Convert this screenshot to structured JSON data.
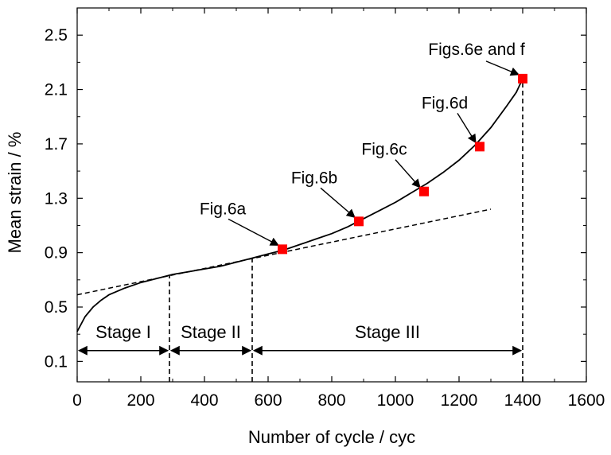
{
  "chart_data": {
    "type": "line",
    "title": "",
    "xlabel": "Number of cycle / cyc",
    "ylabel": "Mean strain / %",
    "xlim": [
      0,
      1600
    ],
    "ylim": [
      -0.05,
      2.7
    ],
    "xticks": [
      0,
      200,
      400,
      600,
      800,
      1000,
      1200,
      1400,
      1600
    ],
    "xtick_labels": [
      "0",
      "200",
      "400",
      "600",
      "800",
      "1000",
      "1200",
      "1400",
      "1600"
    ],
    "yticks": [
      0.1,
      0.5,
      0.9,
      1.3,
      1.7,
      2.1,
      2.5
    ],
    "ytick_labels": [
      "0.1",
      "0.5",
      "0.9",
      "1.3",
      "1.7",
      "2.1",
      "2.5"
    ],
    "grid": false,
    "series": [
      {
        "x": [
          0,
          25,
          50,
          75,
          100,
          150,
          200,
          250,
          300,
          350,
          400,
          450,
          500,
          550,
          600,
          650,
          700,
          750,
          800,
          850,
          900,
          950,
          1000,
          1050,
          1100,
          1150,
          1200,
          1250,
          1300,
          1350,
          1380,
          1400
        ],
        "y": [
          0.32,
          0.43,
          0.5,
          0.55,
          0.59,
          0.64,
          0.68,
          0.71,
          0.74,
          0.76,
          0.78,
          0.8,
          0.83,
          0.86,
          0.89,
          0.92,
          0.96,
          1.0,
          1.04,
          1.09,
          1.15,
          1.21,
          1.27,
          1.34,
          1.41,
          1.49,
          1.58,
          1.69,
          1.82,
          1.98,
          2.08,
          2.18
        ],
        "color": "#000000"
      }
    ],
    "trend_line": {
      "x": [
        0,
        1300
      ],
      "y": [
        0.59,
        1.22
      ],
      "style": "dashed"
    },
    "markers": [
      {
        "x": 645,
        "y": 0.925,
        "label": "Fig.6a"
      },
      {
        "x": 885,
        "y": 1.13,
        "label": "Fig.6b"
      },
      {
        "x": 1090,
        "y": 1.35,
        "label": "Fig.6c"
      },
      {
        "x": 1265,
        "y": 1.68,
        "label": "Fig.6d"
      },
      {
        "x": 1400,
        "y": 2.18,
        "label": "Figs.6e and f"
      }
    ],
    "marker_color": "#ff0000",
    "stage_boundaries": [
      {
        "x": 290,
        "y_top": 0.73
      },
      {
        "x": 550,
        "y_top": 0.87
      },
      {
        "x": 1400,
        "y_top": 2.18
      }
    ],
    "stage_arrow_y": 0.18,
    "stages": [
      {
        "label": "Stage I",
        "x_from": 0,
        "x_to": 290
      },
      {
        "label": "Stage II",
        "x_from": 290,
        "x_to": 550
      },
      {
        "label": "Stage III",
        "x_from": 550,
        "x_to": 1400
      }
    ],
    "stage_label_y": 0.32
  }
}
